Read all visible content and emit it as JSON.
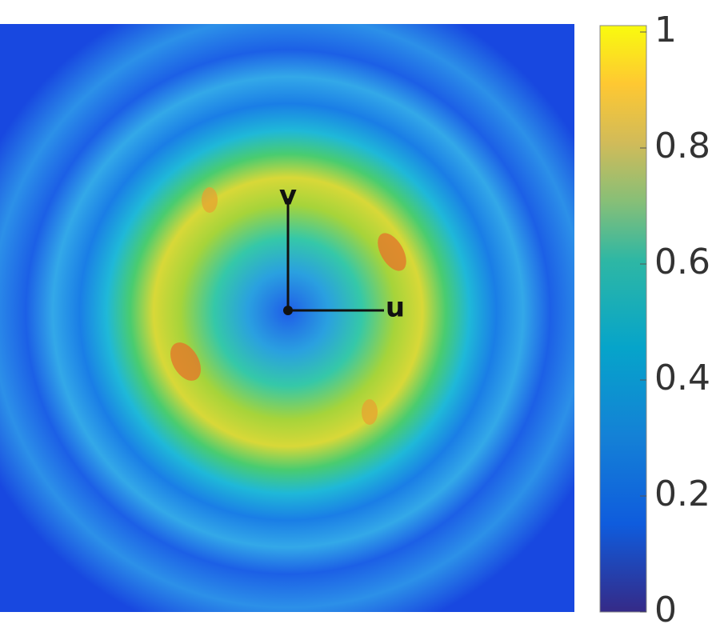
{
  "chart_data": {
    "type": "heatmap",
    "annotations": [
      "v",
      "u"
    ],
    "colorbar": {
      "clim": [
        0,
        1
      ],
      "ticks": [
        0,
        0.2,
        0.4,
        0.6,
        0.8,
        1
      ],
      "colormap": "parula"
    }
  }
}
